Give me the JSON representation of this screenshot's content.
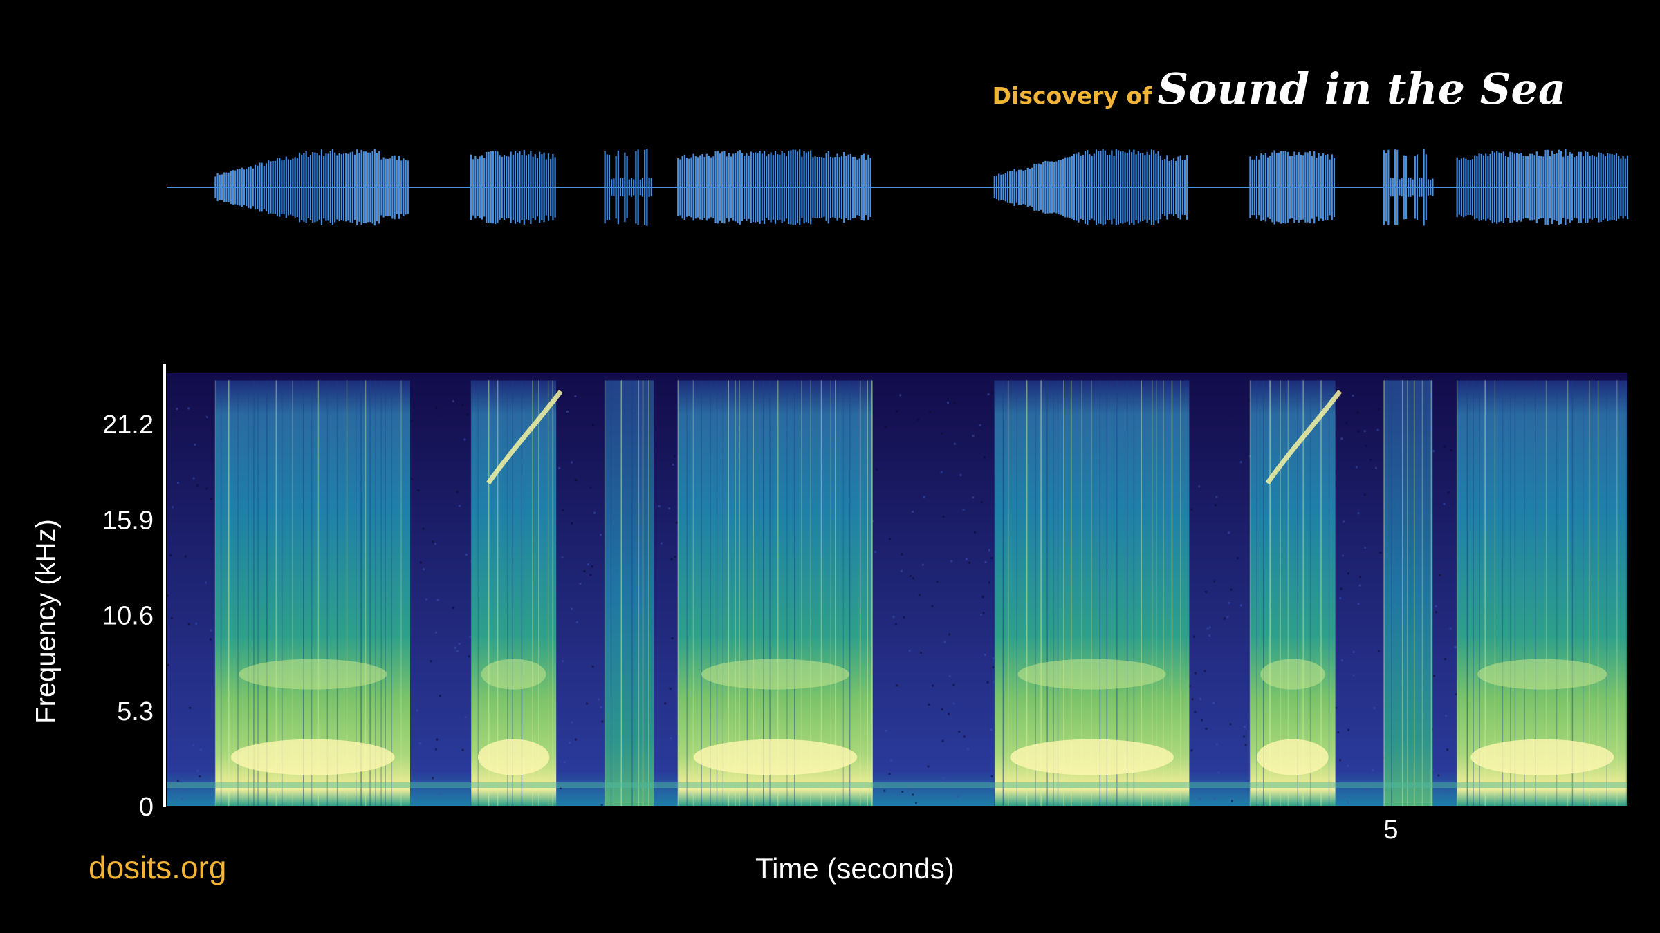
{
  "branding": {
    "prefix": "Discovery of",
    "title": "Sound in the Sea",
    "site": "dosits.org"
  },
  "chart_data": [
    {
      "type": "area",
      "kind": "waveform",
      "color": "#4a90e2",
      "segments_seconds": [
        [
          0.2,
          1.0,
          "swell"
        ],
        [
          1.25,
          1.6,
          "block"
        ],
        [
          1.8,
          2.0,
          "pulses"
        ],
        [
          2.1,
          2.9,
          "block"
        ],
        [
          3.4,
          4.2,
          "swell"
        ],
        [
          4.45,
          4.8,
          "block"
        ],
        [
          5.0,
          5.2,
          "pulses"
        ],
        [
          5.3,
          6.0,
          "block"
        ]
      ]
    },
    {
      "type": "heatmap",
      "kind": "spectrogram",
      "xlabel": "Time (seconds)",
      "ylabel": "Frequency (kHz)",
      "xlim": [
        0,
        6.0
      ],
      "ylim": [
        0,
        24
      ],
      "yticks": [
        0,
        5.3,
        10.6,
        15.9,
        21.2
      ],
      "ytick_labels": [
        "0",
        "5.3",
        "10.6",
        "15.9",
        "21.2"
      ],
      "xticks": [
        5
      ],
      "xtick_labels": [
        "5"
      ],
      "colormap": [
        "#120c4a",
        "#2a3a9a",
        "#1f7fa8",
        "#2ea08a",
        "#7cc46a",
        "#f4ef9a"
      ]
    }
  ]
}
